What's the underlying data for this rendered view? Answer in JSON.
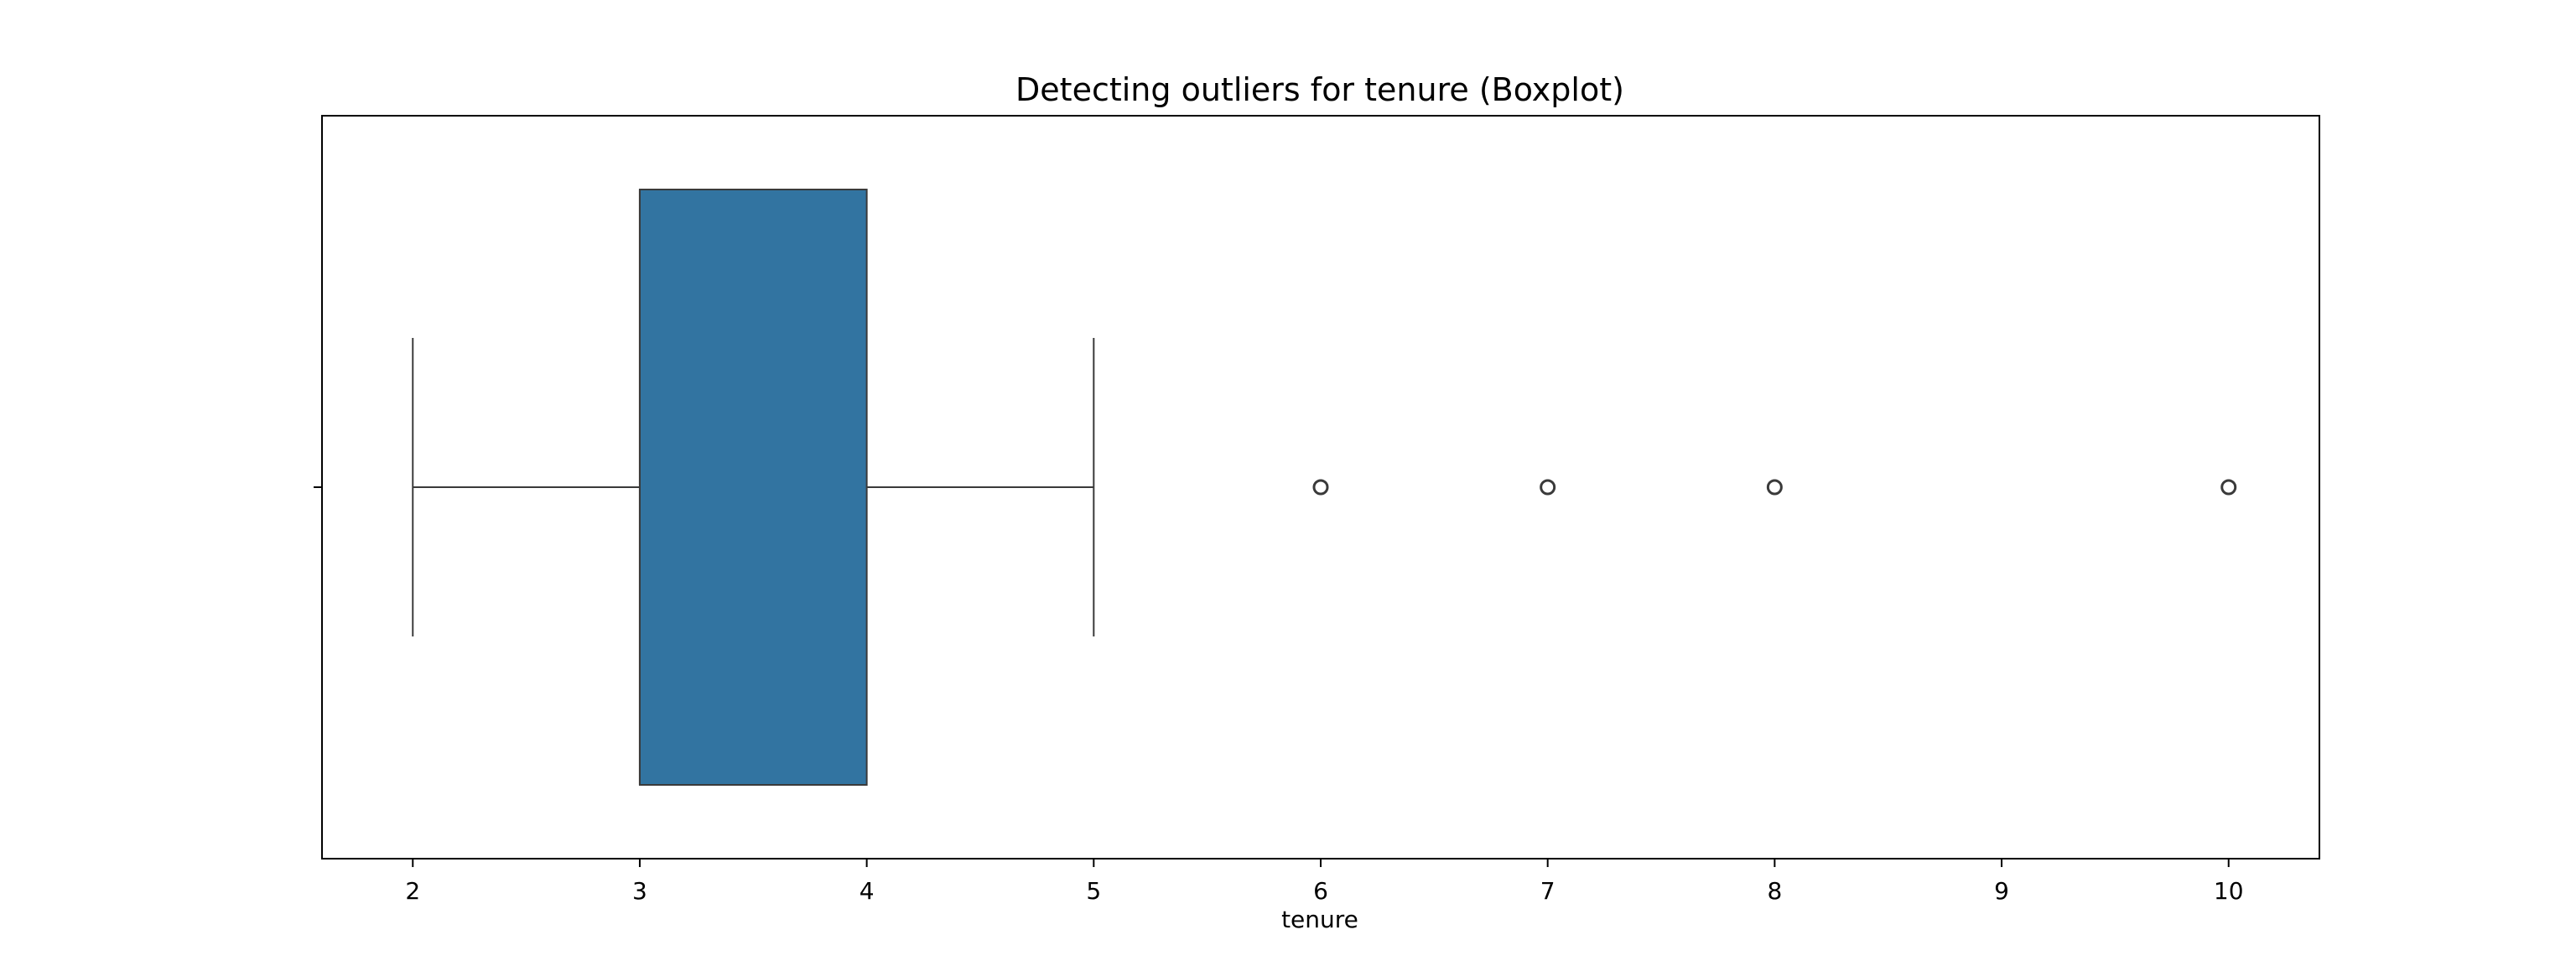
{
  "chart_data": {
    "type": "boxplot",
    "orientation": "horizontal",
    "title": "Detecting outliers for tenure (Boxplot)",
    "xlabel": "tenure",
    "ylabel": "",
    "xlim": [
      1.6,
      10.4
    ],
    "xticks": [
      2,
      3,
      4,
      5,
      6,
      7,
      8,
      9,
      10
    ],
    "xtick_labels": [
      "2",
      "3",
      "4",
      "5",
      "6",
      "7",
      "8",
      "9",
      "10"
    ],
    "grid": false,
    "legend": false,
    "series": [
      {
        "whisker_low": 2,
        "q1": 3,
        "median": 3,
        "q3": 4,
        "whisker_high": 5,
        "outliers": [
          6,
          7,
          8,
          10
        ]
      }
    ],
    "colors": {
      "box_fill": "#3274a1",
      "line": "#3a3a3a",
      "axes": "#000000",
      "background": "#ffffff"
    }
  }
}
